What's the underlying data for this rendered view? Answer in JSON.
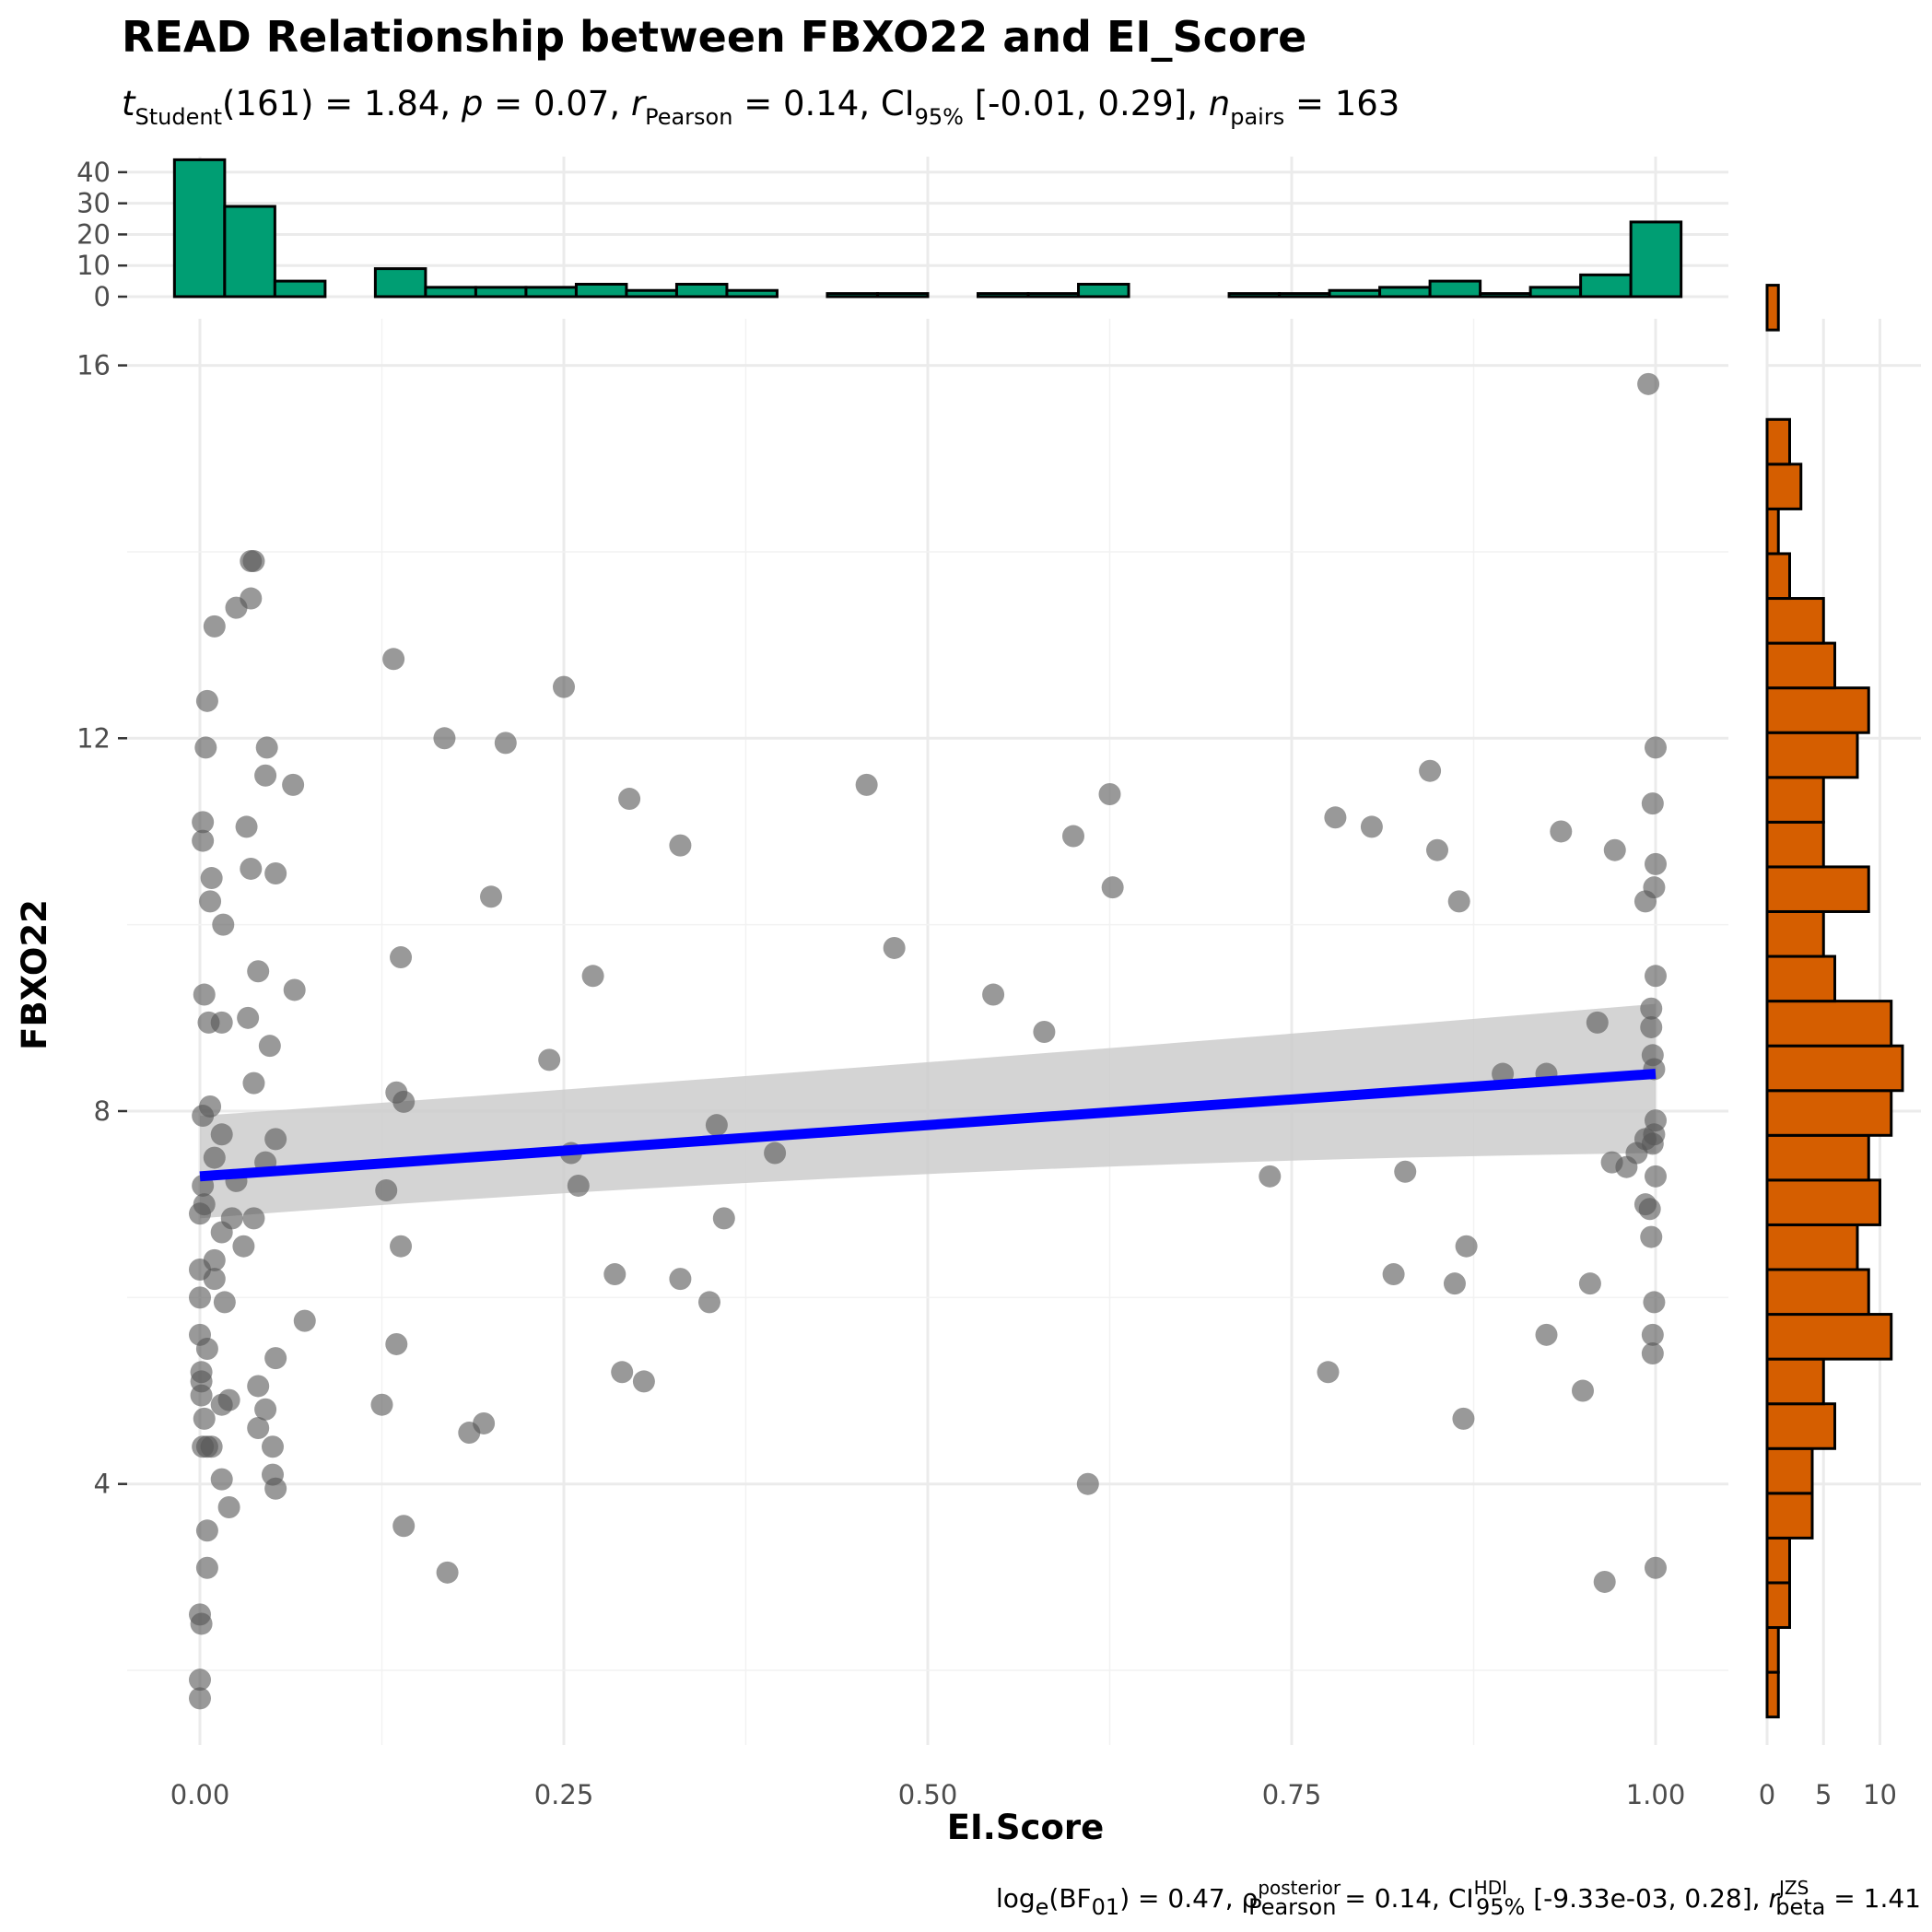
{
  "title": "READ Relationship between FBXO22 and EI_Score",
  "subtitle": {
    "t_sym": "t",
    "t_sub": "Student",
    "t_val": "(161) = 1.84, ",
    "p_sym": "p",
    "p_val": " = 0.07, ",
    "r_sym": "r",
    "r_hat": "^",
    "r_sub": "Pearson",
    "r_val": " = 0.14, CI",
    "ci_sub": "95%",
    "ci_val": " [-0.01, 0.29], ",
    "n_sym": "n",
    "n_sub": "pairs",
    "n_val": " = 163"
  },
  "caption": {
    "log_label": "log",
    "log_sub": "e",
    "bf_open": "(BF",
    "bf_sub": "01",
    "bf_val": ") = 0.47, ",
    "rho_sym": "ρ",
    "rho_hat": "^",
    "rho_sup": "posterior",
    "rho_sub": "Pearson",
    "rho_val": " = 0.14, CI",
    "ci_sup": "HDI",
    "ci_sub": "95%",
    "ci_val": " [-9.33e-03, 0.28], ",
    "r_sym": "r",
    "r_sup": "JZS",
    "r_sub": "beta",
    "r_val": " = 1.41"
  },
  "chart_data": {
    "type": "scatter",
    "xlabel": "EI.Score",
    "ylabel": "FBXO22",
    "xlim": [
      -0.05,
      1.05
    ],
    "ylim": [
      1.2,
      16.5
    ],
    "x_ticks": [
      0,
      0.25,
      0.5,
      0.75,
      1
    ],
    "x_tick_labels": [
      "0.00",
      "0.25",
      "0.50",
      "0.75",
      "1.00"
    ],
    "y_ticks": [
      4,
      8,
      12,
      16
    ],
    "y_tick_labels": [
      "4",
      "8",
      "12",
      "16"
    ],
    "grid": true,
    "point_color": "#555555",
    "line_color": "#0000ff",
    "band_color": "#cccccc",
    "regression": {
      "x": [
        0,
        1
      ],
      "y": [
        7.3,
        8.4
      ],
      "ci_lower": [
        6.85,
        7.55
      ],
      "ci_upper": [
        7.95,
        9.15
      ]
    },
    "points": [
      [
        0.0,
        1.7
      ],
      [
        0.0,
        1.9
      ],
      [
        0.001,
        2.5
      ],
      [
        0.0,
        2.6
      ],
      [
        0.005,
        3.1
      ],
      [
        0.005,
        3.5
      ],
      [
        0.02,
        3.75
      ],
      [
        0.015,
        4.05
      ],
      [
        0.05,
        4.1
      ],
      [
        0.052,
        3.95
      ],
      [
        0.05,
        4.4
      ],
      [
        0.002,
        4.4
      ],
      [
        0.005,
        4.4
      ],
      [
        0.008,
        4.4
      ],
      [
        0.015,
        4.85
      ],
      [
        0.003,
        4.7
      ],
      [
        0.04,
        4.6
      ],
      [
        0.045,
        4.8
      ],
      [
        0.02,
        4.9
      ],
      [
        0.001,
        4.95
      ],
      [
        0.001,
        5.1
      ],
      [
        0.001,
        5.2
      ],
      [
        0.04,
        5.05
      ],
      [
        0.005,
        5.45
      ],
      [
        0.052,
        5.35
      ],
      [
        0.0,
        5.6
      ],
      [
        0.072,
        5.75
      ],
      [
        0.0,
        6.0
      ],
      [
        0.017,
        5.95
      ],
      [
        0.01,
        6.2
      ],
      [
        0.0,
        6.3
      ],
      [
        0.01,
        6.4
      ],
      [
        0.015,
        6.7
      ],
      [
        0.03,
        6.55
      ],
      [
        0.022,
        6.85
      ],
      [
        0.037,
        6.85
      ],
      [
        0.0,
        6.9
      ],
      [
        0.003,
        7.0
      ],
      [
        0.002,
        7.2
      ],
      [
        0.025,
        7.25
      ],
      [
        0.045,
        7.45
      ],
      [
        0.01,
        7.5
      ],
      [
        0.015,
        7.75
      ],
      [
        0.052,
        7.7
      ],
      [
        0.002,
        7.95
      ],
      [
        0.007,
        8.05
      ],
      [
        0.037,
        8.3
      ],
      [
        0.048,
        8.7
      ],
      [
        0.006,
        8.95
      ],
      [
        0.015,
        8.95
      ],
      [
        0.033,
        9.0
      ],
      [
        0.003,
        9.25
      ],
      [
        0.065,
        9.3
      ],
      [
        0.04,
        9.5
      ],
      [
        0.016,
        10.0
      ],
      [
        0.007,
        10.25
      ],
      [
        0.008,
        10.5
      ],
      [
        0.052,
        10.55
      ],
      [
        0.035,
        10.6
      ],
      [
        0.002,
        10.9
      ],
      [
        0.002,
        11.1
      ],
      [
        0.032,
        11.05
      ],
      [
        0.045,
        11.6
      ],
      [
        0.064,
        11.5
      ],
      [
        0.004,
        11.9
      ],
      [
        0.046,
        11.9
      ],
      [
        0.005,
        12.4
      ],
      [
        0.01,
        13.2
      ],
      [
        0.025,
        13.4
      ],
      [
        0.035,
        13.5
      ],
      [
        0.035,
        13.9
      ],
      [
        0.037,
        13.9
      ],
      [
        0.125,
        4.85
      ],
      [
        0.17,
        3.05
      ],
      [
        0.185,
        4.55
      ],
      [
        0.195,
        4.65
      ],
      [
        0.14,
        3.55
      ],
      [
        0.135,
        5.5
      ],
      [
        0.138,
        6.55
      ],
      [
        0.128,
        7.15
      ],
      [
        0.135,
        8.2
      ],
      [
        0.14,
        8.1
      ],
      [
        0.138,
        9.65
      ],
      [
        0.133,
        12.85
      ],
      [
        0.168,
        12.0
      ],
      [
        0.2,
        10.3
      ],
      [
        0.21,
        11.95
      ],
      [
        0.24,
        8.55
      ],
      [
        0.25,
        12.55
      ],
      [
        0.255,
        7.55
      ],
      [
        0.26,
        7.2
      ],
      [
        0.27,
        9.45
      ],
      [
        0.285,
        6.25
      ],
      [
        0.29,
        5.2
      ],
      [
        0.295,
        11.35
      ],
      [
        0.305,
        5.1
      ],
      [
        0.33,
        6.2
      ],
      [
        0.33,
        10.85
      ],
      [
        0.35,
        5.95
      ],
      [
        0.355,
        7.85
      ],
      [
        0.36,
        6.85
      ],
      [
        0.395,
        7.55
      ],
      [
        0.458,
        11.5
      ],
      [
        0.477,
        9.75
      ],
      [
        0.545,
        9.25
      ],
      [
        0.58,
        8.85
      ],
      [
        0.6,
        10.95
      ],
      [
        0.61,
        4.0
      ],
      [
        0.625,
        11.4
      ],
      [
        0.627,
        10.4
      ],
      [
        0.735,
        7.3
      ],
      [
        0.775,
        5.2
      ],
      [
        0.78,
        11.15
      ],
      [
        0.805,
        11.05
      ],
      [
        0.82,
        6.25
      ],
      [
        0.828,
        7.35
      ],
      [
        0.845,
        11.65
      ],
      [
        0.85,
        10.8
      ],
      [
        0.862,
        6.15
      ],
      [
        0.865,
        10.25
      ],
      [
        0.868,
        4.7
      ],
      [
        0.87,
        6.55
      ],
      [
        0.895,
        8.4
      ],
      [
        0.925,
        5.6
      ],
      [
        0.925,
        8.4
      ],
      [
        0.935,
        11.0
      ],
      [
        0.95,
        5.0
      ],
      [
        0.955,
        6.15
      ],
      [
        0.96,
        8.95
      ],
      [
        0.965,
        2.95
      ],
      [
        0.97,
        7.45
      ],
      [
        0.972,
        10.8
      ],
      [
        0.98,
        7.4
      ],
      [
        0.987,
        7.55
      ],
      [
        0.993,
        7.7
      ],
      [
        0.993,
        10.25
      ],
      [
        0.993,
        7.0
      ],
      [
        0.996,
        6.95
      ],
      [
        0.997,
        6.65
      ],
      [
        0.997,
        8.9
      ],
      [
        0.997,
        9.1
      ],
      [
        0.998,
        8.6
      ],
      [
        0.998,
        7.65
      ],
      [
        0.999,
        7.75
      ],
      [
        1.0,
        7.9
      ],
      [
        0.999,
        8.45
      ],
      [
        1.0,
        9.45
      ],
      [
        0.999,
        10.4
      ],
      [
        1.0,
        10.65
      ],
      [
        0.998,
        11.3
      ],
      [
        1.0,
        11.9
      ],
      [
        1.0,
        7.3
      ],
      [
        0.999,
        5.95
      ],
      [
        0.998,
        5.6
      ],
      [
        0.998,
        5.4
      ],
      [
        1.0,
        3.1
      ],
      [
        0.995,
        15.8
      ]
    ],
    "x_histogram": {
      "ticks": [
        0,
        10,
        20,
        30,
        40
      ],
      "tick_labels": [
        "0",
        "10",
        "20",
        "30",
        "40"
      ],
      "ymax": 45,
      "color": "#009e73",
      "bin_start": -0.0175,
      "bin_width": 0.0345,
      "counts": [
        44,
        29,
        5,
        0,
        9,
        3,
        3,
        3,
        4,
        2,
        4,
        2,
        0,
        1,
        1,
        0,
        1,
        1,
        4,
        0,
        0,
        1,
        1,
        2,
        3,
        5,
        1,
        3,
        7,
        24
      ]
    },
    "y_histogram": {
      "ticks": [
        0,
        5,
        10
      ],
      "tick_labels": [
        "0",
        "5",
        "10"
      ],
      "xmax": 12,
      "color": "#d55e00",
      "bin_start": 1.5,
      "bin_width": 0.48,
      "counts": [
        1,
        1,
        2,
        2,
        4,
        4,
        6,
        5,
        11,
        9,
        8,
        10,
        9,
        11,
        12,
        11,
        6,
        5,
        9,
        5,
        5,
        8,
        9,
        6,
        5,
        2,
        1,
        3,
        2,
        0,
        0,
        1
      ]
    }
  }
}
